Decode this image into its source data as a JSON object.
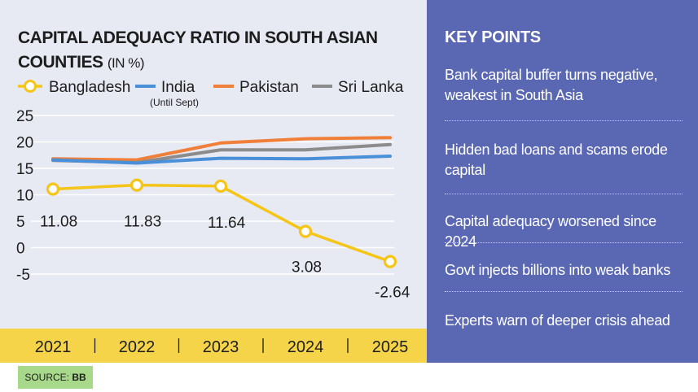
{
  "chart_data": {
    "type": "line",
    "title": "CAPITAL ADEQUACY RATIO IN SOUTH ASIAN COUNTIES",
    "title_unit": "(IN %)",
    "categories": [
      "2021",
      "2022",
      "2023",
      "2024",
      "2025"
    ],
    "ylim": [
      -5,
      25
    ],
    "yticks": [
      "25",
      "20",
      "15",
      "10",
      "5",
      "0",
      "-5"
    ],
    "grid": true,
    "legend_position": "top",
    "series": [
      {
        "name": "Bangladesh",
        "color": "#f5c518",
        "values": [
          11.08,
          11.83,
          11.64,
          3.08,
          -2.64
        ],
        "labels": [
          "11.08",
          "11.83",
          "11.64",
          "3.08",
          "-2.64"
        ],
        "marker": "circle"
      },
      {
        "name": "India",
        "note": "(Until Sept)",
        "color": "#4a90d9",
        "values": [
          16.6,
          16.0,
          16.9,
          16.8,
          17.3
        ]
      },
      {
        "name": "Pakistan",
        "color": "#f07f3a",
        "values": [
          16.8,
          16.6,
          19.8,
          20.6,
          20.8
        ]
      },
      {
        "name": "Sri Lanka",
        "color": "#8c8c8c",
        "values": [
          16.5,
          16.1,
          18.5,
          18.5,
          19.5
        ]
      }
    ],
    "source_label": "SOURCE:",
    "source_value": "BB"
  },
  "key_points": {
    "title": "KEY POINTS",
    "items": [
      "Bank capital buffer turns negative, weakest in South Asia",
      "Hidden bad loans and scams erode capital",
      "Capital adequacy worsened since 2024",
      "Govt injects billions into weak banks",
      "Experts warn of deeper crisis ahead"
    ]
  }
}
